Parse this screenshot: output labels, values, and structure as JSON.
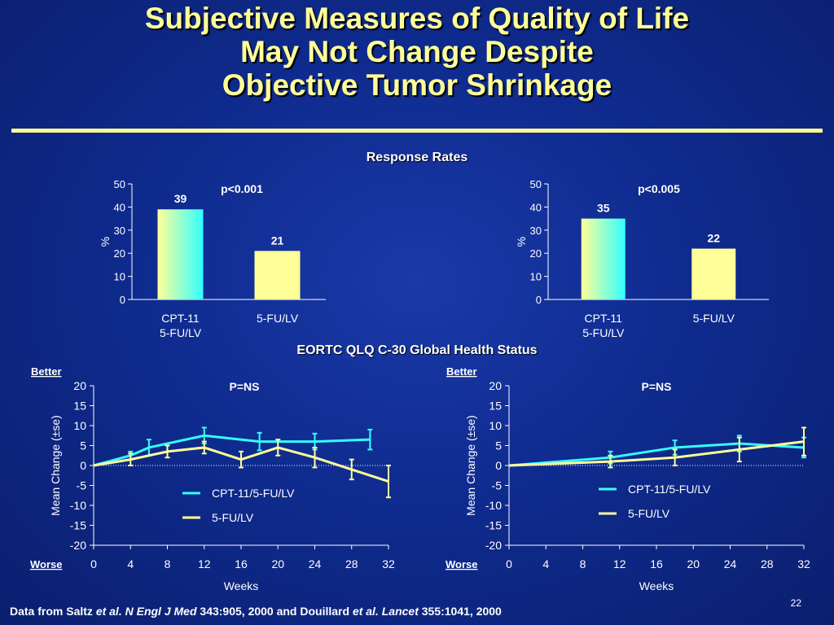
{
  "slide": {
    "title_lines": [
      "Subjective Measures of Quality of Life",
      "May Not Change Despite",
      "Objective Tumor Shrinkage"
    ],
    "response_rates_title": "Response Rates",
    "qol_title": "EORTC QLQ C-30 Global Health Status",
    "footer": {
      "p1": "Data from Saltz ",
      "i1": "et al. N Engl J Med",
      "p2": " 343:905, 2000 and Douillard ",
      "i2": "et al. Lancet",
      "p3": " 355:1041, 2000"
    },
    "slide_number": "22"
  },
  "colors": {
    "background": "#0f2b8f",
    "title": "#ffff99",
    "cpt_gradient_start": "#ffff99",
    "cpt_gradient_end": "#33ffff",
    "fulv": "#ffff99",
    "cpt_line": "#33ffff"
  },
  "chart_data": [
    {
      "type": "bar",
      "annotation": "p<0.001",
      "categories": [
        [
          "CPT-11",
          "5-FU/LV"
        ],
        [
          "5-FU/LV"
        ]
      ],
      "values": [
        39,
        21
      ],
      "ylabel": "%",
      "ylim": [
        0,
        50
      ],
      "yticks": [
        0,
        10,
        20,
        30,
        40,
        50
      ],
      "grid": false
    },
    {
      "type": "bar",
      "annotation": "p<0.005",
      "categories": [
        [
          "CPT-11",
          "5-FU/LV"
        ],
        [
          "5-FU/LV"
        ]
      ],
      "values": [
        35,
        22
      ],
      "ylabel": "%",
      "ylim": [
        0,
        50
      ],
      "yticks": [
        0,
        10,
        20,
        30,
        40,
        50
      ],
      "grid": false
    },
    {
      "type": "line",
      "annotation": "P=NS",
      "better_label": "Better",
      "worse_label": "Worse",
      "xlabel": "Weeks",
      "ylabel": "Mean Change (±se)",
      "xlim": [
        0,
        32
      ],
      "ylim": [
        -20,
        20
      ],
      "xticks": [
        0,
        4,
        8,
        12,
        16,
        20,
        24,
        28,
        32
      ],
      "yticks": [
        20,
        15,
        10,
        5,
        0,
        -5,
        -10,
        -15,
        -20
      ],
      "legend_position": "center-right",
      "series": [
        {
          "name": "CPT-11/5-FU/LV",
          "x": [
            0,
            4,
            6,
            12,
            18,
            24,
            30
          ],
          "y": [
            0,
            2.5,
            4.5,
            7.5,
            6,
            6,
            6.5
          ],
          "err": [
            0,
            1,
            2,
            2,
            2.2,
            2,
            2.5
          ]
        },
        {
          "name": "5-FU/LV",
          "x": [
            0,
            4,
            8,
            12,
            16,
            20,
            24,
            28,
            32
          ],
          "y": [
            0,
            1.5,
            3.5,
            4.5,
            1.5,
            4.5,
            2,
            -1,
            -4
          ],
          "err": [
            0,
            1.5,
            1.5,
            1.5,
            2,
            2,
            2.5,
            2.5,
            4
          ]
        }
      ]
    },
    {
      "type": "line",
      "annotation": "P=NS",
      "better_label": "Better",
      "worse_label": "Worse",
      "xlabel": "Weeks",
      "ylabel": "Mean Change (±se)",
      "xlim": [
        0,
        32
      ],
      "ylim": [
        -20,
        20
      ],
      "xticks": [
        0,
        4,
        8,
        12,
        16,
        20,
        24,
        28,
        32
      ],
      "yticks": [
        20,
        15,
        10,
        5,
        0,
        -5,
        -10,
        -15,
        -20
      ],
      "legend_position": "center-right",
      "series": [
        {
          "name": "CPT-11/5-FU/LV",
          "x": [
            0,
            11,
            18,
            25,
            32
          ],
          "y": [
            0,
            2,
            4.5,
            5.5,
            4.5
          ],
          "err": [
            0,
            1.5,
            1.8,
            2,
            2.5
          ]
        },
        {
          "name": "5-FU/LV",
          "x": [
            0,
            11,
            18,
            25,
            32
          ],
          "y": [
            0,
            1,
            2,
            4,
            6
          ],
          "err": [
            0,
            1.5,
            2,
            3,
            3.5
          ]
        }
      ]
    }
  ]
}
